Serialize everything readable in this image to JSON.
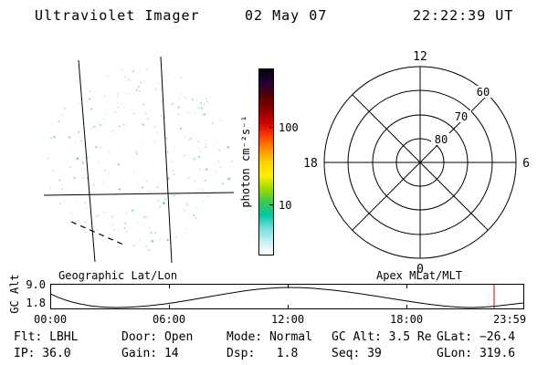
{
  "header": {
    "title": "Ultraviolet Imager",
    "date": "02 May 07",
    "time": "22:22:39 UT"
  },
  "image_panel": {
    "caption": "Geographic Lat/Lon",
    "speckle_colors": [
      "#8fd8cc",
      "#aee4db",
      "#63c9bc",
      "#c8ece6",
      "#49b3a5"
    ]
  },
  "colorbar": {
    "unit_label": "photon cm⁻²s⁻¹",
    "ticks": [
      "100",
      "10"
    ],
    "gradient": [
      "#03030a",
      "#22003a",
      "#550000",
      "#8b0000",
      "#c80000",
      "#ff3c00",
      "#ff8c00",
      "#ffd200",
      "#fff000",
      "#a0dc00",
      "#3cc850",
      "#00c8a0",
      "#78dcdc",
      "#c8eeee",
      "#ffffff"
    ]
  },
  "polar": {
    "caption": "Apex MLat/MLT",
    "mlt_top": "12",
    "mlt_right": "6",
    "mlt_bottom": "0",
    "mlt_left": "18",
    "rings": [
      "60",
      "70",
      "80"
    ]
  },
  "strip": {
    "ylabel": "GC Alt",
    "ytick_top": "9.0",
    "ytick_bottom": "1.8",
    "xticks": [
      "00:00",
      "06:00",
      "12:00",
      "18:00",
      "23:59"
    ],
    "marker_color": "#cc0000"
  },
  "footer": {
    "flt": "Flt: LBHL",
    "ip": "IP: 36.0",
    "door": "Door: Open",
    "gain": "Gain: 14",
    "mode": "Mode: Normal",
    "dsp": "Dsp:   1.8",
    "gcalt": "GC Alt: 3.5 Re",
    "seq": "Seq: 39",
    "glat": "GLat: −26.4",
    "glon": "GLon: 319.6"
  },
  "chart_data": [
    {
      "type": "heatmap",
      "title": "Ultraviolet image (circular field of view)",
      "colorbar_label": "photon cm⁻²s⁻¹",
      "scale": "log",
      "colorbar_ticks": [
        10,
        100
      ],
      "note": "only faint scattered low-intensity counts visible; geographic lat/lon grid lines overlaid on disk"
    },
    {
      "type": "scatter",
      "title": "Apex MLat/MLT polar grid",
      "rings_mlat": [
        80,
        70,
        60,
        50
      ],
      "mlt_ticks": [
        0,
        6,
        12,
        18
      ],
      "values": [],
      "note": "grid only; rings labeled 60, 70, 80 along the 45-degree spoke; 8 spokes at 45-degree intervals"
    },
    {
      "type": "line",
      "title": "Spacecraft geocentric altitude vs UT",
      "xlabel": "UT",
      "ylabel": "GC Alt (Re)",
      "ylim": [
        1.8,
        9.0
      ],
      "x": [
        "00:00",
        "02:45",
        "06:00",
        "09:00",
        "12:00",
        "15:00",
        "18:00",
        "21:30",
        "23:59"
      ],
      "values": [
        4.5,
        1.8,
        4.5,
        7.8,
        9.0,
        7.8,
        4.5,
        1.8,
        3.8
      ],
      "xticks": [
        "00:00",
        "06:00",
        "12:00",
        "18:00",
        "23:59"
      ],
      "current_marker": {
        "time": "22:22",
        "gc_alt": 3.5,
        "color": "#cc0000"
      }
    }
  ]
}
